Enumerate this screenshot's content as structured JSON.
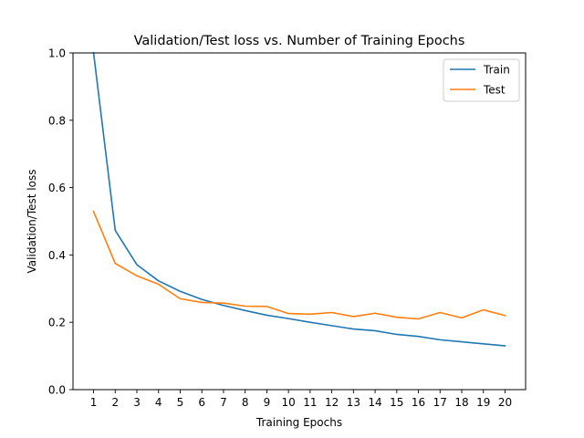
{
  "chart_data": {
    "type": "line",
    "title": "Validation/Test loss vs. Number of Training Epochs",
    "xlabel": "Training Epochs",
    "ylabel": "Validation/Test loss",
    "x": [
      1,
      2,
      3,
      4,
      5,
      6,
      7,
      8,
      9,
      10,
      11,
      12,
      13,
      14,
      15,
      16,
      17,
      18,
      19,
      20
    ],
    "xticks": [
      "1",
      "2",
      "3",
      "4",
      "5",
      "6",
      "7",
      "8",
      "9",
      "10",
      "11",
      "12",
      "13",
      "14",
      "15",
      "16",
      "17",
      "18",
      "19",
      "20"
    ],
    "xlim": [
      0.05,
      20.95
    ],
    "ylim": [
      0.0,
      1.0
    ],
    "yticks": [
      "0.0",
      "0.2",
      "0.4",
      "0.6",
      "0.8",
      "1.0"
    ],
    "grid": false,
    "legend_position": "top-right",
    "series": [
      {
        "name": "Train",
        "color": "#1f77b4",
        "values": [
          1.0,
          0.473,
          0.371,
          0.323,
          0.292,
          0.268,
          0.25,
          0.235,
          0.221,
          0.211,
          0.2,
          0.19,
          0.18,
          0.175,
          0.164,
          0.158,
          0.148,
          0.142,
          0.136,
          0.13
        ]
      },
      {
        "name": "Test",
        "color": "#ff7f0e",
        "values": [
          0.529,
          0.375,
          0.338,
          0.313,
          0.27,
          0.259,
          0.257,
          0.248,
          0.247,
          0.226,
          0.224,
          0.229,
          0.217,
          0.227,
          0.215,
          0.21,
          0.229,
          0.213,
          0.237,
          0.22
        ]
      }
    ]
  }
}
